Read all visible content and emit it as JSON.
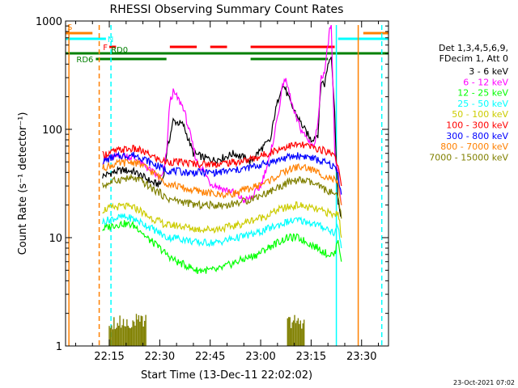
{
  "chart_data": {
    "type": "line",
    "title": "RHESSI Observing Summary Count Rates",
    "xlabel": "Start Time (13-Dec-11 22:02:02)",
    "ylabel": "Count Rate (s⁻¹ detector⁻¹)",
    "yscale": "log",
    "ylim": [
      1,
      1000
    ],
    "xlim_minutes": [
      0,
      96
    ],
    "x_ticks": [
      {
        "label": "22:15",
        "minutes": 13
      },
      {
        "label": "22:30",
        "minutes": 28
      },
      {
        "label": "22:45",
        "minutes": 43
      },
      {
        "label": "23:00",
        "minutes": 58
      },
      {
        "label": "23:15",
        "minutes": 73
      },
      {
        "label": "23:30",
        "minutes": 88
      }
    ],
    "y_ticks": [
      {
        "label": "1",
        "value": 1
      },
      {
        "label": "10",
        "value": 10
      },
      {
        "label": "100",
        "value": 100
      },
      {
        "label": "1000",
        "value": 1000
      }
    ],
    "legend_header": [
      "Det 1,3,4,5,6,9,",
      "FDecim 1, Att 0"
    ],
    "series": [
      {
        "name": "3 - 6 keV",
        "color": "#000000",
        "x": [
          11,
          14,
          17,
          20,
          22,
          24,
          26,
          28,
          29,
          30,
          32,
          35,
          38,
          41,
          44,
          47,
          50,
          53,
          55,
          57,
          59,
          61,
          62,
          64,
          65,
          67,
          69,
          71,
          73,
          75,
          76,
          77,
          78,
          79,
          80,
          81,
          82
        ],
        "y": [
          37,
          40,
          42,
          41,
          38,
          35,
          32,
          31,
          36,
          60,
          120,
          110,
          60,
          55,
          52,
          55,
          60,
          55,
          50,
          60,
          70,
          80,
          130,
          240,
          250,
          170,
          130,
          100,
          80,
          90,
          280,
          260,
          400,
          500,
          140,
          20,
          16
        ]
      },
      {
        "name": "6 - 12 keV",
        "color": "#ff00ff",
        "x": [
          11,
          14,
          17,
          20,
          22,
          24,
          26,
          28,
          29,
          30,
          31,
          32,
          33,
          35,
          37,
          39,
          41,
          43,
          45,
          47,
          49,
          51,
          53,
          55,
          56,
          58,
          61,
          63,
          65,
          66,
          68,
          70,
          72,
          74,
          75,
          76,
          77,
          78,
          78.5,
          79,
          80,
          81,
          82
        ],
        "y": [
          52,
          55,
          57,
          55,
          50,
          45,
          40,
          35,
          38,
          60,
          180,
          220,
          200,
          160,
          90,
          50,
          42,
          32,
          30,
          28,
          27,
          25,
          22,
          23,
          25,
          30,
          60,
          130,
          300,
          250,
          140,
          100,
          80,
          70,
          120,
          300,
          350,
          600,
          800,
          900,
          60,
          40,
          20
        ]
      },
      {
        "name": "12 - 25 keV",
        "color": "#00ff00",
        "x": [
          11,
          14,
          17,
          20,
          22,
          24,
          26,
          28,
          30,
          33,
          36,
          39,
          42,
          45,
          48,
          51,
          54,
          57,
          60,
          63,
          66,
          69,
          72,
          75,
          78,
          80,
          81,
          82
        ],
        "y": [
          12,
          13,
          13.5,
          13,
          12,
          10,
          9,
          8,
          7,
          6,
          5.5,
          5,
          5,
          5,
          5.5,
          6,
          6.5,
          7,
          8,
          9,
          10,
          10,
          9,
          8,
          7,
          7,
          10,
          6
        ]
      },
      {
        "name": "25 - 50 keV",
        "color": "#00ffff",
        "x": [
          11,
          14,
          17,
          20,
          22,
          24,
          26,
          28,
          30,
          33,
          36,
          39,
          42,
          45,
          48,
          51,
          54,
          57,
          60,
          63,
          66,
          69,
          72,
          75,
          78,
          80,
          81,
          82
        ],
        "y": [
          14,
          15,
          15.5,
          15,
          14,
          13,
          12,
          11,
          10,
          10,
          9.5,
          9,
          9,
          9,
          9.5,
          10,
          10.5,
          11,
          12,
          13,
          14,
          14.5,
          14,
          13,
          12,
          11,
          13,
          8
        ]
      },
      {
        "name": "50 - 100 keV",
        "color": "#cccc00",
        "x": [
          11,
          14,
          17,
          20,
          22,
          24,
          26,
          28,
          30,
          33,
          36,
          39,
          42,
          45,
          48,
          51,
          54,
          57,
          60,
          63,
          66,
          69,
          72,
          75,
          78,
          80,
          81,
          82
        ],
        "y": [
          18,
          19,
          19.5,
          19,
          18,
          16,
          15,
          14,
          13,
          13,
          12.5,
          12,
          12,
          12,
          12.5,
          13,
          14,
          15,
          16,
          18,
          19,
          20,
          19,
          18,
          17,
          16,
          18,
          10
        ]
      },
      {
        "name": "100 - 300 keV",
        "color": "#ff0000",
        "x": [
          11,
          14,
          17,
          20,
          22,
          24,
          26,
          28,
          30,
          33,
          36,
          39,
          42,
          45,
          48,
          51,
          54,
          57,
          60,
          63,
          66,
          69,
          72,
          75,
          78,
          80,
          81,
          82
        ],
        "y": [
          58,
          62,
          65,
          66,
          64,
          60,
          56,
          52,
          50,
          50,
          49,
          48,
          48,
          48,
          49,
          50,
          52,
          55,
          60,
          65,
          70,
          72,
          70,
          66,
          62,
          60,
          45,
          30
        ]
      },
      {
        "name": "300 - 800 keV",
        "color": "#0000ff",
        "x": [
          11,
          14,
          17,
          20,
          22,
          24,
          26,
          28,
          30,
          33,
          36,
          39,
          42,
          45,
          48,
          51,
          54,
          57,
          60,
          63,
          66,
          69,
          72,
          75,
          78,
          80,
          81,
          82
        ],
        "y": [
          50,
          55,
          57,
          58,
          56,
          52,
          48,
          45,
          42,
          41,
          40,
          40,
          40,
          40,
          41,
          42,
          44,
          46,
          49,
          52,
          55,
          57,
          56,
          52,
          48,
          45,
          38,
          25
        ]
      },
      {
        "name": "800 - 7000 keV",
        "color": "#ff8000",
        "x": [
          11,
          14,
          17,
          20,
          22,
          24,
          26,
          28,
          30,
          33,
          36,
          39,
          42,
          45,
          48,
          51,
          54,
          57,
          60,
          63,
          66,
          69,
          72,
          75,
          78,
          80,
          81,
          82
        ],
        "y": [
          44,
          47,
          49,
          50,
          48,
          44,
          40,
          36,
          32,
          30,
          28,
          27,
          26,
          25,
          25,
          26,
          28,
          30,
          33,
          37,
          42,
          45,
          44,
          40,
          36,
          34,
          30,
          20
        ]
      },
      {
        "name": "7000 - 15000 keV",
        "color": "#808000",
        "x": [
          11,
          14,
          17,
          20,
          22,
          24,
          26,
          28,
          30,
          33,
          36,
          39,
          42,
          45,
          48,
          51,
          54,
          57,
          60,
          63,
          66,
          69,
          72,
          75,
          78,
          80,
          81,
          82
        ],
        "y": [
          30,
          33,
          35,
          35,
          34,
          31,
          28,
          26,
          23,
          22,
          21,
          20,
          20,
          20,
          20,
          21,
          22,
          24,
          26,
          29,
          32,
          34,
          33,
          30,
          27,
          25,
          23,
          15
        ]
      }
    ],
    "flag_bars": [
      {
        "label": "S",
        "color": "#ff8000",
        "start": 0,
        "end": 8
      },
      {
        "label": "S",
        "color": "#ff8000",
        "start": 88.5,
        "end": 96
      },
      {
        "label": "N",
        "color": "#00ffff",
        "start": 0,
        "end": 12
      },
      {
        "label": "N",
        "color": "#00ffff",
        "start": 81,
        "end": 96
      },
      {
        "label": "F",
        "color": "#ff0000",
        "start": 13,
        "end": 15
      },
      {
        "label": "F",
        "color": "#ff0000",
        "start": 31,
        "end": 39
      },
      {
        "label": "F",
        "color": "#ff0000",
        "start": 43,
        "end": 48
      },
      {
        "label": "F",
        "color": "#ff0000",
        "start": 55,
        "end": 80
      },
      {
        "label": "RD0",
        "color": "#008000",
        "start": 0,
        "end": 96
      },
      {
        "label": "RD6",
        "color": "#008000",
        "start": 9,
        "end": 30
      },
      {
        "label": "RD6",
        "color": "#008000",
        "start": 55,
        "end": 78
      }
    ],
    "vertical_lines": [
      {
        "minutes": 1,
        "color": "#ff8000",
        "style": "solid"
      },
      {
        "minutes": 10,
        "color": "#ff8000",
        "style": "dashed"
      },
      {
        "minutes": 13.5,
        "color": "#00ffff",
        "style": "dashed"
      },
      {
        "minutes": 80.5,
        "color": "#00ffff",
        "style": "solid"
      },
      {
        "minutes": 87,
        "color": "#ff8000",
        "style": "solid"
      },
      {
        "minutes": 94,
        "color": "#00ffff",
        "style": "dashed"
      }
    ],
    "attenuator_bursts": [
      {
        "start": 13,
        "end": 24,
        "color": "#808000"
      },
      {
        "start": 66,
        "end": 71,
        "color": "#808000"
      }
    ],
    "footer_date": "23-Oct-2021 07:02"
  }
}
